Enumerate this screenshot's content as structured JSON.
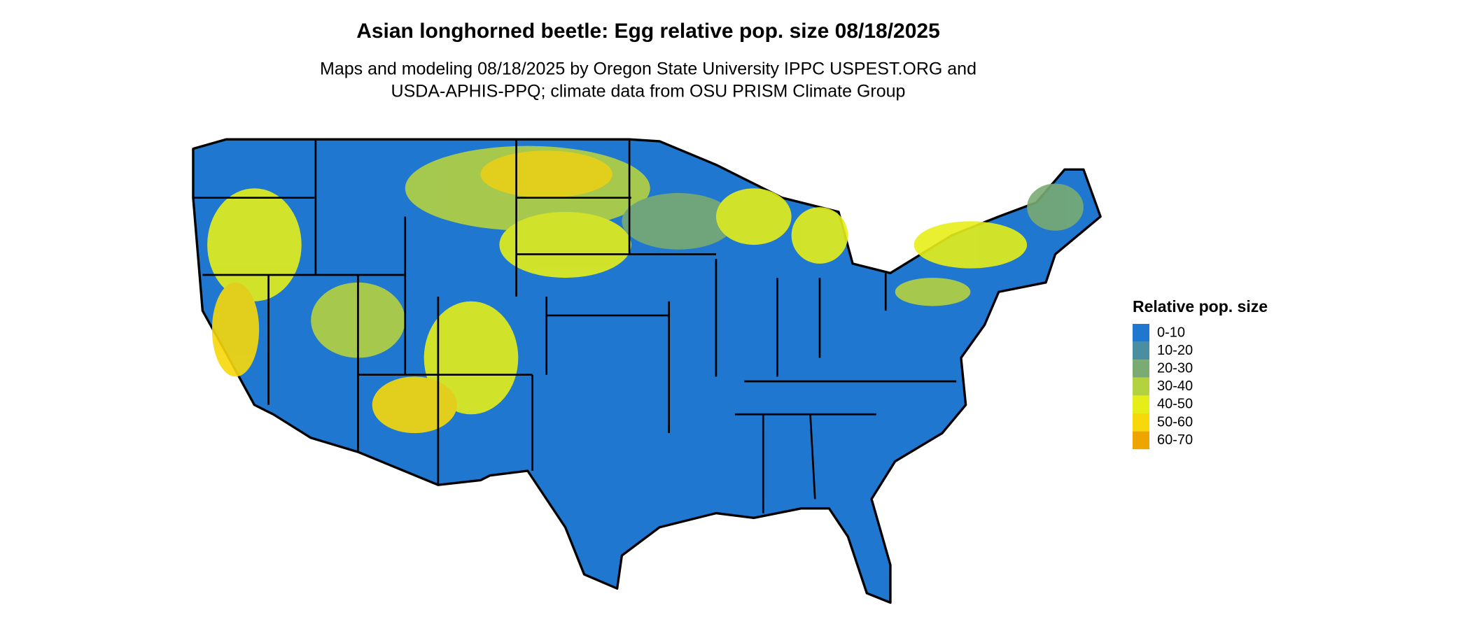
{
  "title": "Asian longhorned beetle: Egg relative pop. size 08/18/2025",
  "subtitle": [
    "Maps and modeling 08/18/2025 by Oregon State University IPPC USPEST.ORG and",
    "USDA-APHIS-PPQ; climate data from OSU PRISM Climate Group"
  ],
  "legend": {
    "title": "Relative pop. size",
    "items": [
      {
        "label": "0-10",
        "color": "#1f77d0"
      },
      {
        "label": "10-20",
        "color": "#4a8fa0"
      },
      {
        "label": "20-30",
        "color": "#79ab72"
      },
      {
        "label": "30-40",
        "color": "#b4d13f"
      },
      {
        "label": "40-50",
        "color": "#e5ee19"
      },
      {
        "label": "50-60",
        "color": "#f7d80a"
      },
      {
        "label": "60-70",
        "color": "#efa500"
      }
    ]
  }
}
